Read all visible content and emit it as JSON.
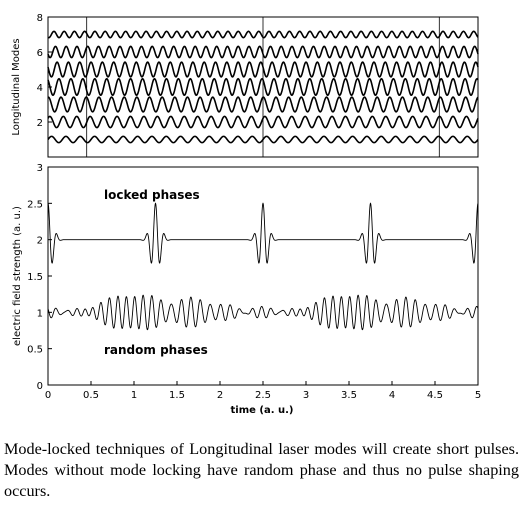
{
  "chart_data": [
    {
      "type": "line",
      "ylabel": "Longitudinal Modes",
      "xlim": [
        0,
        5
      ],
      "ylim": [
        0,
        8
      ],
      "yticks": [
        "2",
        "4",
        "6",
        "8"
      ],
      "grid": "vertical lines at x = 0.45, 2.5, 4.55",
      "series": [
        {
          "offset": 1,
          "cycles_per_unit": 6.0,
          "amplitude": 0.18
        },
        {
          "offset": 2,
          "cycles_per_unit": 6.4,
          "amplitude": 0.32
        },
        {
          "offset": 3,
          "cycles_per_unit": 6.8,
          "amplitude": 0.42
        },
        {
          "offset": 4,
          "cycles_per_unit": 7.2,
          "amplitude": 0.47
        },
        {
          "offset": 5,
          "cycles_per_unit": 7.6,
          "amplitude": 0.42
        },
        {
          "offset": 6,
          "cycles_per_unit": 8.0,
          "amplitude": 0.32
        },
        {
          "offset": 7,
          "cycles_per_unit": 8.4,
          "amplitude": 0.18
        }
      ]
    },
    {
      "type": "line",
      "xlabel": "time (a. u.)",
      "ylabel": "electric field strength (a. u.)",
      "xlim": [
        0,
        5
      ],
      "ylim": [
        0,
        3
      ],
      "xticks": [
        "0",
        "0.5",
        "1",
        "1.5",
        "2",
        "2.5",
        "3",
        "3.5",
        "4",
        "4.5",
        "5"
      ],
      "yticks": [
        "0",
        "0.5",
        "1",
        "1.5",
        "2",
        "2.5",
        "3"
      ],
      "annotations": [
        "locked phases",
        "random phases"
      ],
      "series": [
        {
          "label": "locked phases",
          "baseline": 2.0,
          "peak_amplitude": 0.5,
          "pulse_centers": [
            0.0,
            1.25,
            2.5,
            3.75,
            5.0
          ]
        },
        {
          "label": "random phases",
          "baseline": 1.0,
          "amplitude_range": [
            0.8,
            1.2
          ]
        }
      ]
    }
  ],
  "caption": "Mode-locked techniques of Longitudinal laser modes will create short pulses. Modes without mode locking have random phase and thus no pulse shaping occurs."
}
